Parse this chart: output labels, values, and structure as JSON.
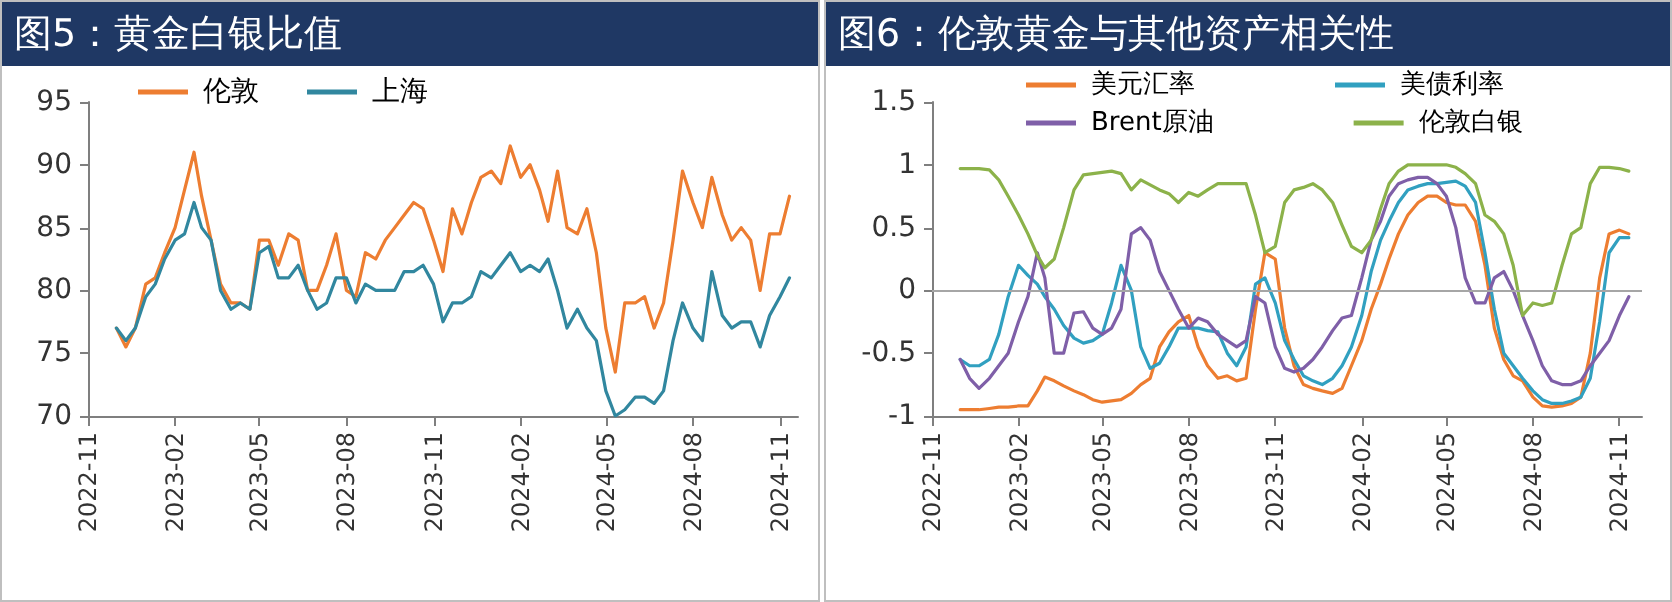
{
  "chart_data": [
    {
      "type": "line",
      "title": "图5：黄金白银比值",
      "x": [
        "2022-12-01",
        "2022-12-11",
        "2022-12-21",
        "2023-01-01",
        "2023-01-11",
        "2023-01-21",
        "2023-02-01",
        "2023-02-11",
        "2023-02-21",
        "2023-03-01",
        "2023-03-11",
        "2023-03-21",
        "2023-04-01",
        "2023-04-11",
        "2023-04-21",
        "2023-05-01",
        "2023-05-11",
        "2023-05-21",
        "2023-06-01",
        "2023-06-11",
        "2023-06-21",
        "2023-07-01",
        "2023-07-11",
        "2023-07-21",
        "2023-08-01",
        "2023-08-11",
        "2023-08-21",
        "2023-09-01",
        "2023-09-11",
        "2023-09-21",
        "2023-10-01",
        "2023-10-11",
        "2023-10-21",
        "2023-11-01",
        "2023-11-11",
        "2023-11-21",
        "2023-12-01",
        "2023-12-11",
        "2023-12-21",
        "2024-01-01",
        "2024-01-11",
        "2024-01-21",
        "2024-02-01",
        "2024-02-11",
        "2024-02-21",
        "2024-03-01",
        "2024-03-11",
        "2024-03-21",
        "2024-04-01",
        "2024-04-11",
        "2024-04-21",
        "2024-05-01",
        "2024-05-11",
        "2024-05-21",
        "2024-06-01",
        "2024-06-11",
        "2024-06-21",
        "2024-07-01",
        "2024-07-11",
        "2024-07-21",
        "2024-08-01",
        "2024-08-11",
        "2024-08-21",
        "2024-09-01",
        "2024-09-11",
        "2024-09-21",
        "2024-10-01",
        "2024-10-11",
        "2024-10-21",
        "2024-11-01",
        "2024-11-11"
      ],
      "series": [
        {
          "name": "伦敦",
          "color": "#ed7d31",
          "values": [
            77,
            75.5,
            77,
            80.5,
            81,
            83,
            85,
            88,
            91,
            87.5,
            84,
            80.5,
            79,
            79,
            78.5,
            84,
            84,
            82,
            84.5,
            84,
            80,
            80,
            82,
            84.5,
            80,
            79.5,
            83,
            82.5,
            84,
            85,
            86,
            87,
            86.5,
            84,
            81.5,
            86.5,
            84.5,
            87,
            89,
            89.5,
            88.5,
            91.5,
            89,
            90,
            88,
            85.5,
            89.5,
            85,
            84.5,
            86.5,
            83,
            77,
            73.5,
            79,
            79,
            79.5,
            77,
            79,
            84,
            89.5,
            87,
            85,
            89,
            86,
            84,
            85,
            84,
            80,
            84.5,
            84.5,
            87.5
          ]
        },
        {
          "name": "上海",
          "color": "#31879f",
          "values": [
            77,
            76,
            77,
            79.5,
            80.5,
            82.5,
            84,
            84.5,
            87,
            85,
            84,
            80,
            78.5,
            79,
            78.5,
            83,
            83.5,
            81,
            81,
            82,
            80,
            78.5,
            79,
            81,
            81,
            79,
            80.5,
            80,
            80,
            80,
            81.5,
            81.5,
            82,
            80.5,
            77.5,
            79,
            79,
            79.5,
            81.5,
            81,
            82,
            83,
            81.5,
            82,
            81.5,
            82.5,
            80,
            77,
            78.5,
            77,
            76,
            72,
            70,
            70.5,
            71.5,
            71.5,
            71,
            72,
            76,
            79,
            77,
            76,
            81.5,
            78,
            77,
            77.5,
            77.5,
            75.5,
            78,
            79.5,
            81
          ]
        }
      ],
      "xlim": [
        "2022-11-01",
        "2024-11-20"
      ],
      "xticks": [
        "2022-11",
        "2023-02",
        "2023-05",
        "2023-08",
        "2023-11",
        "2024-02",
        "2024-05",
        "2024-08",
        "2024-11"
      ],
      "ylim": [
        70,
        95
      ],
      "yticks": [
        70,
        75,
        80,
        85,
        90,
        95
      ],
      "legend": "top left",
      "grid": false,
      "marker": "none",
      "line_style": "solid"
    },
    {
      "type": "line",
      "title": "图6：伦敦黄金与其他资产相关性",
      "x": [
        "2022-12-01",
        "2022-12-11",
        "2022-12-21",
        "2023-01-01",
        "2023-01-11",
        "2023-01-21",
        "2023-02-01",
        "2023-02-11",
        "2023-02-21",
        "2023-03-01",
        "2023-03-11",
        "2023-03-21",
        "2023-04-01",
        "2023-04-11",
        "2023-04-21",
        "2023-05-01",
        "2023-05-11",
        "2023-05-21",
        "2023-06-01",
        "2023-06-11",
        "2023-06-21",
        "2023-07-01",
        "2023-07-11",
        "2023-07-21",
        "2023-08-01",
        "2023-08-11",
        "2023-08-21",
        "2023-09-01",
        "2023-09-11",
        "2023-09-21",
        "2023-10-01",
        "2023-10-11",
        "2023-10-21",
        "2023-11-01",
        "2023-11-11",
        "2023-11-21",
        "2023-12-01",
        "2023-12-11",
        "2023-12-21",
        "2024-01-01",
        "2024-01-11",
        "2024-01-21",
        "2024-02-01",
        "2024-02-11",
        "2024-02-21",
        "2024-03-01",
        "2024-03-11",
        "2024-03-21",
        "2024-04-01",
        "2024-04-11",
        "2024-04-21",
        "2024-05-01",
        "2024-05-11",
        "2024-05-21",
        "2024-06-01",
        "2024-06-11",
        "2024-06-21",
        "2024-07-01",
        "2024-07-11",
        "2024-07-21",
        "2024-08-01",
        "2024-08-11",
        "2024-08-21",
        "2024-09-01",
        "2024-09-11",
        "2024-09-21",
        "2024-10-01",
        "2024-10-11",
        "2024-10-21",
        "2024-11-01",
        "2024-11-11"
      ],
      "series": [
        {
          "name": "美元汇率",
          "color": "#ed7d31",
          "values": [
            -0.95,
            -0.95,
            -0.95,
            -0.94,
            -0.93,
            -0.93,
            -0.92,
            -0.92,
            -0.8,
            -0.69,
            -0.72,
            -0.76,
            -0.8,
            -0.83,
            -0.87,
            -0.89,
            -0.88,
            -0.87,
            -0.82,
            -0.75,
            -0.7,
            -0.45,
            -0.33,
            -0.25,
            -0.2,
            -0.45,
            -0.6,
            -0.7,
            -0.68,
            -0.72,
            -0.7,
            -0.15,
            0.3,
            0.25,
            -0.3,
            -0.6,
            -0.75,
            -0.78,
            -0.8,
            -0.82,
            -0.78,
            -0.6,
            -0.4,
            -0.15,
            0.05,
            0.25,
            0.45,
            0.6,
            0.7,
            0.75,
            0.75,
            0.7,
            0.68,
            0.68,
            0.55,
            0.2,
            -0.3,
            -0.55,
            -0.68,
            -0.72,
            -0.85,
            -0.92,
            -0.93,
            -0.92,
            -0.9,
            -0.85,
            -0.5,
            0.1,
            0.45,
            0.48,
            0.45
          ]
        },
        {
          "name": "美债利率",
          "color": "#31a0c0",
          "values": [
            -0.55,
            -0.6,
            -0.6,
            -0.55,
            -0.35,
            -0.05,
            0.2,
            0.12,
            0.05,
            -0.05,
            -0.15,
            -0.28,
            -0.38,
            -0.42,
            -0.4,
            -0.35,
            -0.1,
            0.2,
            0,
            -0.45,
            -0.62,
            -0.58,
            -0.45,
            -0.3,
            -0.3,
            -0.3,
            -0.32,
            -0.33,
            -0.5,
            -0.6,
            -0.45,
            0.05,
            0.1,
            -0.1,
            -0.4,
            -0.55,
            -0.68,
            -0.72,
            -0.75,
            -0.7,
            -0.6,
            -0.45,
            -0.2,
            0.15,
            0.4,
            0.55,
            0.7,
            0.8,
            0.83,
            0.85,
            0.85,
            0.86,
            0.87,
            0.83,
            0.7,
            0.3,
            -0.15,
            -0.5,
            -0.6,
            -0.7,
            -0.8,
            -0.87,
            -0.9,
            -0.9,
            -0.88,
            -0.85,
            -0.7,
            -0.25,
            0.3,
            0.42,
            0.42
          ]
        },
        {
          "name": "Brent原油",
          "color": "#7f5fa8",
          "values": [
            -0.55,
            -0.7,
            -0.78,
            -0.7,
            -0.6,
            -0.5,
            -0.25,
            -0.05,
            0.3,
            0.1,
            -0.5,
            -0.5,
            -0.18,
            -0.17,
            -0.3,
            -0.35,
            -0.3,
            -0.15,
            0.45,
            0.5,
            0.4,
            0.15,
            0,
            -0.15,
            -0.3,
            -0.22,
            -0.25,
            -0.35,
            -0.4,
            -0.45,
            -0.4,
            -0.05,
            -0.1,
            -0.45,
            -0.62,
            -0.65,
            -0.62,
            -0.55,
            -0.45,
            -0.32,
            -0.22,
            -0.2,
            0.1,
            0.4,
            0.55,
            0.75,
            0.85,
            0.88,
            0.9,
            0.9,
            0.85,
            0.75,
            0.5,
            0.1,
            -0.1,
            -0.1,
            0.1,
            0.15,
            0,
            -0.2,
            -0.4,
            -0.6,
            -0.72,
            -0.75,
            -0.75,
            -0.72,
            -0.6,
            -0.5,
            -0.4,
            -0.2,
            -0.05
          ]
        },
        {
          "name": "伦敦白银",
          "color": "#8cb24a",
          "values": [
            0.97,
            0.97,
            0.97,
            0.96,
            0.88,
            0.75,
            0.6,
            0.45,
            0.28,
            0.18,
            0.25,
            0.5,
            0.8,
            0.92,
            0.93,
            0.94,
            0.95,
            0.93,
            0.8,
            0.88,
            0.84,
            0.8,
            0.77,
            0.7,
            0.78,
            0.75,
            0.8,
            0.85,
            0.85,
            0.85,
            0.85,
            0.6,
            0.3,
            0.35,
            0.7,
            0.8,
            0.82,
            0.85,
            0.8,
            0.7,
            0.52,
            0.35,
            0.3,
            0.4,
            0.65,
            0.85,
            0.95,
            1,
            1,
            1,
            1,
            1,
            0.98,
            0.93,
            0.85,
            0.6,
            0.55,
            0.45,
            0.2,
            -0.2,
            -0.1,
            -0.12,
            -0.1,
            0.2,
            0.45,
            0.5,
            0.85,
            0.98,
            0.98,
            0.97,
            0.95
          ]
        }
      ],
      "xlim": [
        "2022-11-01",
        "2024-11-25"
      ],
      "xticks": [
        "2022-11",
        "2023-02",
        "2023-05",
        "2023-08",
        "2023-11",
        "2024-02",
        "2024-05",
        "2024-08",
        "2024-11"
      ],
      "ylim": [
        -1,
        1.5
      ],
      "yticks": [
        -1,
        -0.5,
        0,
        0.5,
        1,
        1.5
      ],
      "ref_lines": [
        {
          "axis": "y",
          "value": 0,
          "color": "#a6a6a6"
        }
      ],
      "legend": "top",
      "grid": false,
      "marker": "none",
      "line_style": "solid"
    }
  ]
}
